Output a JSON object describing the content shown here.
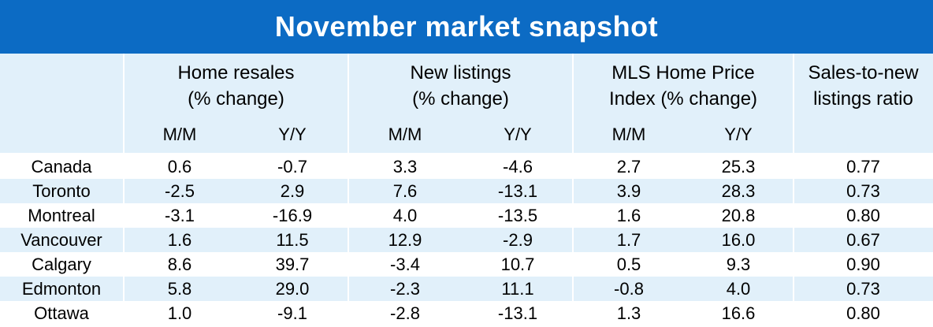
{
  "title": "November market snapshot",
  "chart_data": {
    "type": "table",
    "title": "November market snapshot",
    "column_groups": [
      {
        "label_line1": "Home resales",
        "label_line2": "(% change)",
        "subcolumns": [
          "M/M",
          "Y/Y"
        ]
      },
      {
        "label_line1": "New listings",
        "label_line2": "(% change)",
        "subcolumns": [
          "M/M",
          "Y/Y"
        ]
      },
      {
        "label_line1": "MLS Home Price",
        "label_line2": "Index (% change)",
        "subcolumns": [
          "M/M",
          "Y/Y"
        ]
      },
      {
        "label_line1": "Sales-to-new",
        "label_line2": "listings ratio",
        "subcolumns": []
      }
    ],
    "rows": [
      {
        "city": "Canada",
        "values": [
          "0.6",
          "-0.7",
          "3.3",
          "-4.6",
          "2.7",
          "25.3",
          "0.77"
        ]
      },
      {
        "city": "Toronto",
        "values": [
          "-2.5",
          "2.9",
          "7.6",
          "-13.1",
          "3.9",
          "28.3",
          "0.73"
        ]
      },
      {
        "city": "Montreal",
        "values": [
          "-3.1",
          "-16.9",
          "4.0",
          "-13.5",
          "1.6",
          "20.8",
          "0.80"
        ]
      },
      {
        "city": "Vancouver",
        "values": [
          "1.6",
          "11.5",
          "12.9",
          "-2.9",
          "1.7",
          "16.0",
          "0.67"
        ]
      },
      {
        "city": "Calgary",
        "values": [
          "8.6",
          "39.7",
          "-3.4",
          "10.7",
          "0.5",
          "9.3",
          "0.90"
        ]
      },
      {
        "city": "Edmonton",
        "values": [
          "5.8",
          "29.0",
          "-2.3",
          "11.1",
          "-0.8",
          "4.0",
          "0.73"
        ]
      },
      {
        "city": "Ottawa",
        "values": [
          "1.0",
          "-9.1",
          "-2.8",
          "-13.1",
          "1.3",
          "16.6",
          "0.80"
        ]
      }
    ]
  },
  "colors": {
    "title_background": "#0c6bc4",
    "band": "#e1f0fa",
    "title_text": "#ffffff"
  }
}
